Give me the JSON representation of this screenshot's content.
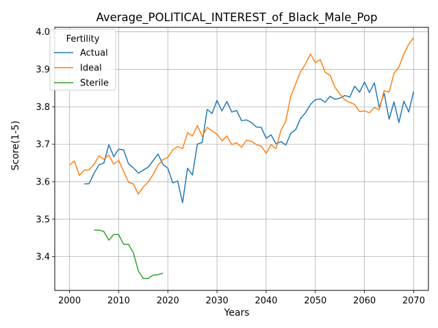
{
  "chart_data": {
    "type": "line",
    "title": "Average_POLITICAL_INTEREST_of_Black_Male_Pop",
    "xlabel": "Years",
    "ylabel": "Score(1-5)",
    "xlim": [
      1997,
      2073
    ],
    "ylim": [
      3.31,
      4.012
    ],
    "x_ticks": [
      2000,
      2010,
      2020,
      2030,
      2040,
      2050,
      2060,
      2070
    ],
    "y_ticks": [
      3.4,
      3.5,
      3.6,
      3.7,
      3.8,
      3.9,
      4.0
    ],
    "grid": true,
    "legend": {
      "title": "Fertility",
      "placement": "top-left"
    },
    "series": [
      {
        "name": "Actual",
        "color": "#1f77b4",
        "x": [
          2003,
          2004,
          2005,
          2006,
          2007,
          2008,
          2009,
          2010,
          2011,
          2012,
          2013,
          2014,
          2015,
          2016,
          2017,
          2018,
          2019,
          2020,
          2021,
          2022,
          2023,
          2024,
          2025,
          2026,
          2027,
          2028,
          2029,
          2030,
          2031,
          2032,
          2033,
          2034,
          2035,
          2036,
          2037,
          2038,
          2039,
          2040,
          2041,
          2042,
          2043,
          2044,
          2045,
          2046,
          2047,
          2048,
          2049,
          2050,
          2051,
          2052,
          2053,
          2054,
          2055,
          2056,
          2057,
          2058,
          2059,
          2060,
          2061,
          2062,
          2063,
          2064,
          2065,
          2066,
          2067,
          2068,
          2069,
          2070
        ],
        "y": [
          3.594,
          3.595,
          3.623,
          3.645,
          3.65,
          3.699,
          3.667,
          3.687,
          3.685,
          3.648,
          3.637,
          3.623,
          3.631,
          3.639,
          3.656,
          3.674,
          3.646,
          3.636,
          3.597,
          3.602,
          3.544,
          3.636,
          3.618,
          3.7,
          3.705,
          3.793,
          3.782,
          3.817,
          3.789,
          3.814,
          3.786,
          3.79,
          3.763,
          3.765,
          3.758,
          3.746,
          3.745,
          3.716,
          3.725,
          3.701,
          3.707,
          3.698,
          3.729,
          3.739,
          3.769,
          3.784,
          3.806,
          3.819,
          3.821,
          3.812,
          3.828,
          3.82,
          3.823,
          3.83,
          3.826,
          3.855,
          3.839,
          3.866,
          3.838,
          3.864,
          3.798,
          3.836,
          3.767,
          3.813,
          3.758,
          3.815,
          3.786,
          3.841
        ]
      },
      {
        "name": "Ideal",
        "color": "#ff7f0e",
        "x": [
          2000,
          2001,
          2002,
          2003,
          2004,
          2005,
          2006,
          2007,
          2008,
          2009,
          2010,
          2011,
          2012,
          2013,
          2014,
          2015,
          2016,
          2017,
          2018,
          2019,
          2020,
          2021,
          2022,
          2023,
          2024,
          2025,
          2026,
          2027,
          2028,
          2029,
          2030,
          2031,
          2032,
          2033,
          2034,
          2035,
          2036,
          2037,
          2038,
          2039,
          2040,
          2041,
          2042,
          2043,
          2044,
          2045,
          2046,
          2047,
          2048,
          2049,
          2050,
          2051,
          2052,
          2053,
          2054,
          2055,
          2056,
          2057,
          2058,
          2059,
          2060,
          2061,
          2062,
          2063,
          2064,
          2065,
          2066,
          2067,
          2068,
          2069,
          2070
        ],
        "y": [
          3.645,
          3.655,
          3.617,
          3.631,
          3.632,
          3.647,
          3.669,
          3.66,
          3.671,
          3.647,
          3.657,
          3.628,
          3.599,
          3.594,
          3.567,
          3.586,
          3.599,
          3.619,
          3.644,
          3.659,
          3.665,
          3.685,
          3.694,
          3.688,
          3.731,
          3.722,
          3.75,
          3.721,
          3.745,
          3.736,
          3.727,
          3.709,
          3.722,
          3.699,
          3.704,
          3.692,
          3.711,
          3.708,
          3.699,
          3.695,
          3.676,
          3.699,
          3.688,
          3.737,
          3.762,
          3.828,
          3.861,
          3.894,
          3.914,
          3.941,
          3.918,
          3.926,
          3.892,
          3.884,
          3.852,
          3.834,
          3.818,
          3.812,
          3.806,
          3.787,
          3.789,
          3.784,
          3.798,
          3.792,
          3.843,
          3.839,
          3.889,
          3.906,
          3.941,
          3.967,
          3.984
        ]
      },
      {
        "name": "Sterile",
        "color": "#2ca02c",
        "x": [
          2005,
          2006,
          2007,
          2008,
          2009,
          2010,
          2011,
          2012,
          2013,
          2014,
          2015,
          2016,
          2017,
          2018,
          2019
        ],
        "y": [
          3.471,
          3.471,
          3.467,
          3.444,
          3.459,
          3.459,
          3.433,
          3.433,
          3.41,
          3.362,
          3.342,
          3.342,
          3.351,
          3.352,
          3.356
        ]
      }
    ]
  }
}
